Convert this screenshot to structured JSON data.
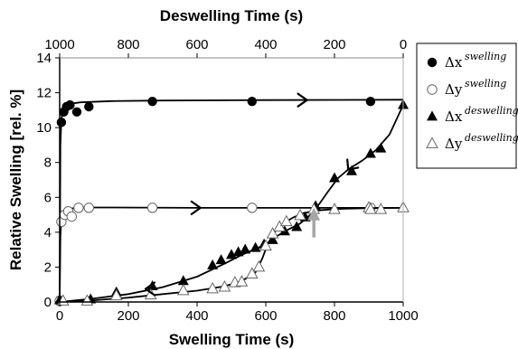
{
  "chart_data": {
    "type": "scatter",
    "x_bottom": {
      "label": "Swelling Time (s)",
      "range": [
        0,
        1000
      ],
      "ticks": [
        "0",
        "200",
        "400",
        "600",
        "800",
        "1000"
      ]
    },
    "x_top": {
      "label": "Deswelling Time (s)",
      "range": [
        1000,
        0
      ],
      "ticks": [
        "1000",
        "800",
        "600",
        "400",
        "200",
        "0"
      ]
    },
    "y": {
      "label": "Relative Swelling [rel. %]",
      "range": [
        0,
        14
      ],
      "ticks": [
        "0",
        "2",
        "4",
        "6",
        "8",
        "10",
        "12",
        "14"
      ]
    },
    "grid": false,
    "legend_position": "right",
    "series": [
      {
        "name_main": "Δx",
        "name_sup": "swelling",
        "marker": "circle-filled",
        "axis": "bottom",
        "points": [
          [
            0,
            0.1
          ],
          [
            5,
            10.3
          ],
          [
            12,
            10.9
          ],
          [
            20,
            11.2
          ],
          [
            30,
            11.3
          ],
          [
            50,
            10.9
          ],
          [
            85,
            11.2
          ],
          [
            270,
            11.5
          ],
          [
            560,
            11.5
          ],
          [
            905,
            11.5
          ]
        ],
        "fit": [
          [
            0,
            0
          ],
          [
            2,
            9.0
          ],
          [
            5,
            10.5
          ],
          [
            10,
            11.0
          ],
          [
            25,
            11.35
          ],
          [
            60,
            11.45
          ],
          [
            150,
            11.52
          ],
          [
            300,
            11.55
          ],
          [
            600,
            11.58
          ],
          [
            1000,
            11.6
          ]
        ]
      },
      {
        "name_main": "Δy",
        "name_sup": "swelling",
        "marker": "circle-open",
        "axis": "bottom",
        "points": [
          [
            0,
            0.05
          ],
          [
            5,
            4.6
          ],
          [
            15,
            5.0
          ],
          [
            25,
            5.2
          ],
          [
            35,
            4.9
          ],
          [
            55,
            5.4
          ],
          [
            85,
            5.4
          ],
          [
            270,
            5.4
          ],
          [
            560,
            5.4
          ],
          [
            905,
            5.4
          ]
        ],
        "fit": [
          [
            0,
            0
          ],
          [
            2,
            3.8
          ],
          [
            5,
            4.7
          ],
          [
            12,
            5.1
          ],
          [
            30,
            5.35
          ],
          [
            60,
            5.42
          ],
          [
            150,
            5.42
          ],
          [
            400,
            5.4
          ],
          [
            700,
            5.4
          ],
          [
            1000,
            5.4
          ]
        ]
      },
      {
        "name_main": "Δx",
        "name_sup": "deswelling",
        "marker": "triangle-filled",
        "axis": "top",
        "points": [
          [
            1000,
            0.1
          ],
          [
            910,
            0.15
          ],
          [
            835,
            0.55
          ],
          [
            730,
            0.9
          ],
          [
            640,
            1.2
          ],
          [
            555,
            2.1
          ],
          [
            530,
            2.4
          ],
          [
            500,
            2.7
          ],
          [
            480,
            2.85
          ],
          [
            460,
            3.0
          ],
          [
            430,
            3.1
          ],
          [
            405,
            3.3
          ],
          [
            380,
            3.55
          ],
          [
            345,
            4.05
          ],
          [
            310,
            4.3
          ],
          [
            285,
            4.85
          ],
          [
            255,
            5.5
          ],
          [
            200,
            7.1
          ],
          [
            150,
            7.5
          ],
          [
            95,
            8.5
          ],
          [
            65,
            8.8
          ],
          [
            0,
            11.3
          ]
        ],
        "fit": [
          [
            1000,
            0
          ],
          [
            900,
            0.2
          ],
          [
            800,
            0.45
          ],
          [
            700,
            0.85
          ],
          [
            600,
            1.45
          ],
          [
            520,
            2.2
          ],
          [
            470,
            2.7
          ],
          [
            430,
            3.05
          ],
          [
            400,
            3.3
          ],
          [
            370,
            3.75
          ],
          [
            340,
            4.1
          ],
          [
            300,
            4.5
          ],
          [
            270,
            5.0
          ],
          [
            245,
            5.6
          ],
          [
            220,
            6.3
          ],
          [
            190,
            7.1
          ],
          [
            160,
            7.6
          ],
          [
            120,
            8.1
          ],
          [
            80,
            8.7
          ],
          [
            40,
            9.6
          ],
          [
            0,
            11.3
          ]
        ]
      },
      {
        "name_main": "Δy",
        "name_sup": "deswelling",
        "marker": "triangle-open",
        "axis": "top",
        "points": [
          [
            990,
            0.05
          ],
          [
            920,
            0.05
          ],
          [
            835,
            0.35
          ],
          [
            735,
            0.4
          ],
          [
            640,
            0.65
          ],
          [
            555,
            0.75
          ],
          [
            520,
            0.85
          ],
          [
            490,
            1.1
          ],
          [
            470,
            1.15
          ],
          [
            440,
            1.6
          ],
          [
            420,
            2.0
          ],
          [
            400,
            3.2
          ],
          [
            380,
            3.9
          ],
          [
            360,
            4.3
          ],
          [
            340,
            4.6
          ],
          [
            300,
            4.95
          ],
          [
            260,
            5.3
          ],
          [
            200,
            5.3
          ],
          [
            100,
            5.4
          ],
          [
            95,
            5.3
          ],
          [
            65,
            5.3
          ],
          [
            0,
            5.4
          ]
        ],
        "fit": [
          [
            1000,
            0
          ],
          [
            900,
            0.1
          ],
          [
            800,
            0.25
          ],
          [
            700,
            0.45
          ],
          [
            600,
            0.65
          ],
          [
            520,
            0.9
          ],
          [
            470,
            1.2
          ],
          [
            430,
            1.7
          ],
          [
            410,
            2.5
          ],
          [
            395,
            3.3
          ],
          [
            375,
            4.0
          ],
          [
            350,
            4.5
          ],
          [
            320,
            4.85
          ],
          [
            290,
            5.1
          ],
          [
            250,
            5.25
          ],
          [
            200,
            5.33
          ],
          [
            100,
            5.38
          ],
          [
            0,
            5.4
          ]
        ]
      }
    ],
    "annotation": {
      "type": "arrow",
      "x": 740,
      "y_from": 3.7,
      "y_to": 5.3,
      "color": "#a6a6a6"
    },
    "direction_arrows": [
      {
        "axis": "bottom",
        "x": 720,
        "y": 11.58,
        "dir": "right"
      },
      {
        "axis": "bottom",
        "x": 410,
        "y": 5.4,
        "dir": "right"
      },
      {
        "axis": "top",
        "x": 160,
        "y": 7.6,
        "dir": "down-left"
      },
      {
        "axis": "top",
        "x": 750,
        "y": 0.75,
        "dir": "left"
      }
    ]
  }
}
